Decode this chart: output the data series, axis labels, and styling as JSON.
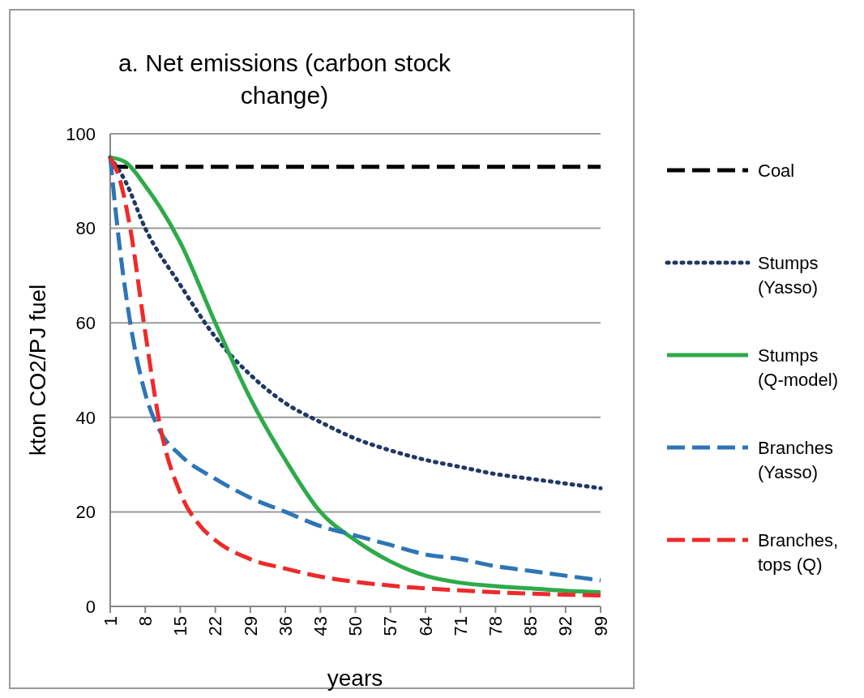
{
  "chart_data": {
    "type": "line",
    "title": "a. Net emissions (carbon stock change)",
    "xlabel": "years",
    "ylabel": "kton CO2/PJ fuel",
    "xlim": [
      1,
      99
    ],
    "xticks": [
      1,
      8,
      15,
      22,
      29,
      36,
      43,
      50,
      57,
      64,
      71,
      78,
      85,
      92,
      99
    ],
    "ylim": [
      0,
      100
    ],
    "yticks": [
      0,
      20,
      40,
      60,
      80,
      100
    ],
    "grid": "y",
    "legend": "right",
    "series": [
      {
        "name": "Coal",
        "color": "#000000",
        "line_style": "dashed",
        "x": [
          1,
          99
        ],
        "values": [
          93,
          93
        ]
      },
      {
        "name": "Stumps (Yasso)",
        "color": "#1f3864",
        "line_style": "dotted",
        "x": [
          1,
          4,
          8,
          15,
          22,
          29,
          36,
          43,
          50,
          57,
          64,
          71,
          78,
          85,
          92,
          99
        ],
        "values": [
          95,
          90,
          80,
          68,
          57,
          49,
          43,
          39,
          35.5,
          33,
          31,
          29.5,
          28,
          27,
          26,
          25
        ]
      },
      {
        "name": "Stumps (Q-model)",
        "color": "#2eaa4a",
        "line_style": "solid",
        "x": [
          1,
          4,
          8,
          15,
          22,
          29,
          36,
          43,
          50,
          57,
          64,
          71,
          78,
          85,
          92,
          99
        ],
        "values": [
          95,
          94,
          89,
          77,
          60,
          44,
          31,
          20,
          14,
          9.5,
          6.5,
          5,
          4.3,
          3.8,
          3.3,
          3
        ]
      },
      {
        "name": "Branches (Yasso)",
        "color": "#2e75b6",
        "line_style": "dashed",
        "x": [
          1,
          3,
          5,
          8,
          11,
          15,
          22,
          29,
          36,
          43,
          50,
          57,
          64,
          71,
          78,
          85,
          92,
          99
        ],
        "values": [
          95,
          75,
          60,
          45,
          37,
          32,
          27,
          23,
          20,
          17,
          15,
          13,
          11,
          10,
          8.5,
          7.5,
          6.5,
          5.5
        ]
      },
      {
        "name": "Branches, tops (Q)",
        "color": "#ee2a2a",
        "line_style": "dashed",
        "x": [
          1,
          3,
          5,
          8,
          11,
          15,
          19,
          22,
          29,
          36,
          43,
          50,
          57,
          64,
          71,
          78,
          85,
          92,
          99
        ],
        "values": [
          95,
          90,
          80,
          58,
          38,
          24,
          17,
          14,
          10,
          8,
          6.3,
          5.2,
          4.4,
          3.8,
          3.4,
          3,
          2.7,
          2.5,
          2.3
        ]
      }
    ]
  }
}
